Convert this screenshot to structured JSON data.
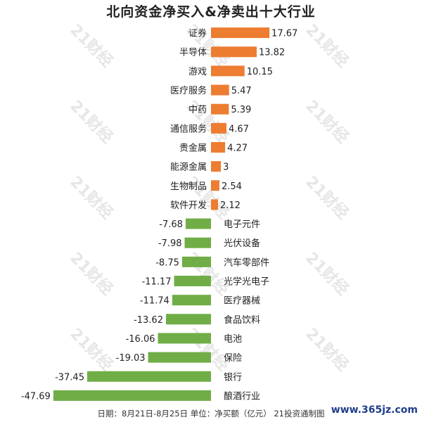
{
  "chart_data": {
    "type": "bar",
    "orientation": "horizontal",
    "title": "北向资金净买入&净卖出十大行业",
    "categories": [
      "证券",
      "半导体",
      "游戏",
      "医疗服务",
      "中药",
      "通信服务",
      "贵金属",
      "能源金属",
      "生物制品",
      "软件开发",
      "电子元件",
      "光伏设备",
      "汽车零部件",
      "光学光电子",
      "医疗器械",
      "食品饮料",
      "电池",
      "保险",
      "银行",
      "酿酒行业"
    ],
    "values": [
      17.67,
      13.82,
      10.15,
      5.47,
      5.39,
      4.67,
      4.27,
      3,
      2.54,
      2.12,
      -7.68,
      -7.98,
      -8.75,
      -11.17,
      -11.74,
      -13.62,
      -16.06,
      -19.03,
      -37.45,
      -47.69
    ],
    "value_labels": [
      "17.67",
      "13.82",
      "10.15",
      "5.47",
      "5.39",
      "4.67",
      "4.27",
      "3",
      "2.54",
      "2.12",
      "-7.68",
      "-7.98",
      "-8.75",
      "-11.17",
      "-11.74",
      "-13.62",
      "-16.06",
      "-19.03",
      "-37.45",
      "-47.69"
    ],
    "colors": {
      "positive": "#ed7d31",
      "negative": "#70ad47"
    },
    "legend": "none",
    "grid": false
  },
  "watermark_text": "21财经",
  "footnote": "日期：8月21日-8月25日 单位：净买额（亿元） 21投资通制图",
  "site_mark": "www.365jz.com"
}
